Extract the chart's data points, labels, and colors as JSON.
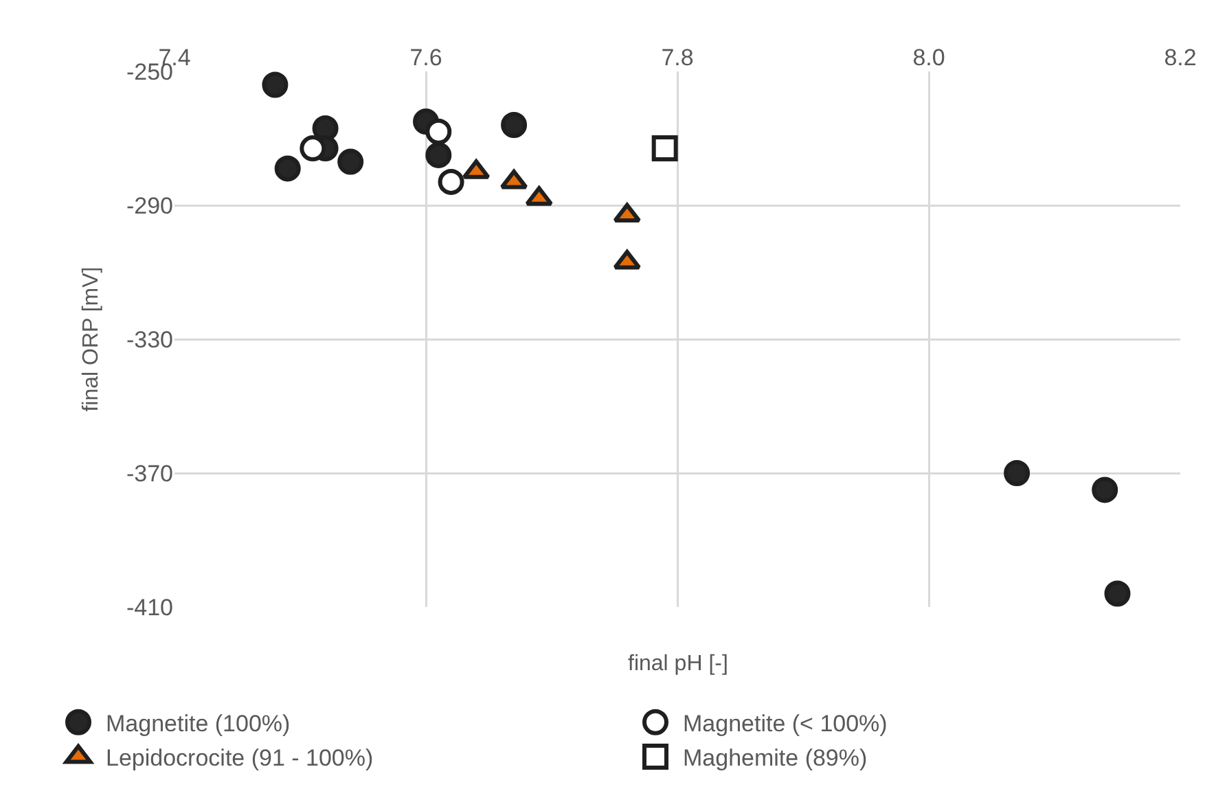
{
  "chart_data": {
    "type": "scatter",
    "xlabel": "final pH [-]",
    "ylabel": "final ORP [mV]",
    "xlim": [
      7.4,
      8.2
    ],
    "xticks": [
      {
        "value": 7.4,
        "label": "7.4"
      },
      {
        "value": 7.6,
        "label": "7.6"
      },
      {
        "value": 7.8,
        "label": "7.8"
      },
      {
        "value": 8.0,
        "label": "8.0"
      },
      {
        "value": 8.2,
        "label": "8.2"
      }
    ],
    "ylim": [
      -410,
      -250
    ],
    "yticks": [
      -410,
      -370,
      -330,
      -290,
      -250
    ],
    "grid": true,
    "legend": "bottom",
    "series": [
      {
        "name": "Magnetite (100%)",
        "color": "#262626",
        "marker": "circle",
        "x": [
          7.48,
          7.49,
          7.52,
          7.52,
          7.54,
          7.6,
          7.61,
          7.67,
          8.07,
          8.14,
          8.15
        ],
        "values": [
          -254,
          -279,
          -267,
          -273,
          -277,
          -265,
          -275,
          -266,
          -370,
          -375,
          -406
        ]
      },
      {
        "name": "Magnetite (< 100%)",
        "color": "#ffffff",
        "marker": "circle",
        "x": [
          7.51,
          7.61,
          7.62
        ],
        "values": [
          -273,
          -268,
          -283
        ]
      },
      {
        "name": "Lepidocrocite (91 - 100%)",
        "color": "#e46c0a",
        "marker": "triangle",
        "x": [
          7.64,
          7.67,
          7.69,
          7.76,
          7.76
        ],
        "values": [
          -280,
          -283,
          -288,
          -293,
          -307
        ]
      },
      {
        "name": "Maghemite (89%)",
        "color": "#ffffff",
        "marker": "square",
        "x": [
          7.79
        ],
        "values": [
          -273
        ]
      }
    ]
  }
}
